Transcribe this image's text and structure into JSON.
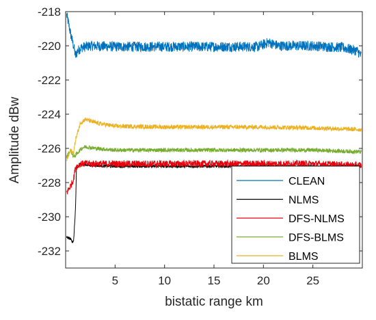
{
  "chart_data": {
    "type": "line",
    "xlabel": "bistatic range km",
    "ylabel": "Amplitude dBw",
    "xlim": [
      0,
      30
    ],
    "ylim": [
      -233,
      -218
    ],
    "xticks": [
      5,
      10,
      15,
      20,
      25
    ],
    "xtick_labels": [
      "5",
      "10",
      "15",
      "20",
      "25"
    ],
    "yticks": [
      -218,
      -220,
      -222,
      -224,
      -226,
      -228,
      -230,
      -232
    ],
    "ytick_labels": [
      "-218",
      "-220",
      "-222",
      "-224",
      "-226",
      "-228",
      "-230",
      "-232"
    ],
    "grid": false,
    "legend_position": "bottom-right",
    "series": [
      {
        "name": "CLEAN",
        "color": "#0072BD",
        "noise": 0.3,
        "points": [
          [
            0.1,
            -218.2
          ],
          [
            0.3,
            -218.7
          ],
          [
            0.5,
            -219.3
          ],
          [
            0.8,
            -220.0
          ],
          [
            1.0,
            -220.6
          ],
          [
            1.2,
            -220.3
          ],
          [
            1.6,
            -220.1
          ],
          [
            2.5,
            -220.0
          ],
          [
            5,
            -220.05
          ],
          [
            10,
            -220.05
          ],
          [
            15,
            -220.05
          ],
          [
            19.5,
            -220.05
          ],
          [
            20.5,
            -219.8
          ],
          [
            21.5,
            -220.0
          ],
          [
            25,
            -220.0
          ],
          [
            28,
            -220.1
          ],
          [
            29.5,
            -220.3
          ],
          [
            29.9,
            -220.6
          ]
        ]
      },
      {
        "name": "NLMS",
        "color": "#000000",
        "noise": 0.08,
        "points": [
          [
            0.1,
            -231.2
          ],
          [
            0.5,
            -231.3
          ],
          [
            0.8,
            -231.5
          ],
          [
            1.0,
            -229.5
          ],
          [
            1.1,
            -227.2
          ],
          [
            1.5,
            -226.9
          ],
          [
            2.5,
            -227.0
          ],
          [
            5,
            -227.05
          ],
          [
            10,
            -227.05
          ],
          [
            15,
            -227.05
          ],
          [
            20,
            -227.05
          ],
          [
            25,
            -227.05
          ],
          [
            29.9,
            -227.05
          ]
        ]
      },
      {
        "name": "DFS-NLMS",
        "color": "#D95319",
        "display_color": "#E8000B",
        "noise": 0.2,
        "points": [
          [
            0.1,
            -228.6
          ],
          [
            0.5,
            -228.2
          ],
          [
            0.8,
            -227.8
          ],
          [
            1.0,
            -227.1
          ],
          [
            1.5,
            -226.9
          ],
          [
            2.5,
            -226.9
          ],
          [
            5,
            -226.9
          ],
          [
            10,
            -226.9
          ],
          [
            15,
            -226.9
          ],
          [
            20,
            -226.9
          ],
          [
            25,
            -226.9
          ],
          [
            29.9,
            -227.0
          ]
        ]
      },
      {
        "name": "DFS-BLMS",
        "color": "#77AC30",
        "noise": 0.12,
        "points": [
          [
            0.1,
            -226.5
          ],
          [
            0.3,
            -226.3
          ],
          [
            0.5,
            -226.1
          ],
          [
            0.8,
            -226.5
          ],
          [
            1.0,
            -226.4
          ],
          [
            1.6,
            -226.0
          ],
          [
            2.0,
            -225.9
          ],
          [
            3,
            -226.0
          ],
          [
            5,
            -226.1
          ],
          [
            10,
            -226.1
          ],
          [
            15,
            -226.1
          ],
          [
            20,
            -226.1
          ],
          [
            25,
            -226.1
          ],
          [
            29.9,
            -226.2
          ]
        ]
      },
      {
        "name": "BLMS",
        "color": "#EDB120",
        "noise": 0.13,
        "points": [
          [
            0.1,
            -226.7
          ],
          [
            0.3,
            -226.4
          ],
          [
            0.5,
            -226.1
          ],
          [
            0.8,
            -226.3
          ],
          [
            1.0,
            -225.5
          ],
          [
            1.5,
            -224.5
          ],
          [
            2.0,
            -224.3
          ],
          [
            3,
            -224.5
          ],
          [
            5,
            -224.7
          ],
          [
            10,
            -224.75
          ],
          [
            15,
            -224.75
          ],
          [
            20,
            -224.75
          ],
          [
            25,
            -224.8
          ],
          [
            29.9,
            -224.9
          ]
        ]
      }
    ]
  }
}
